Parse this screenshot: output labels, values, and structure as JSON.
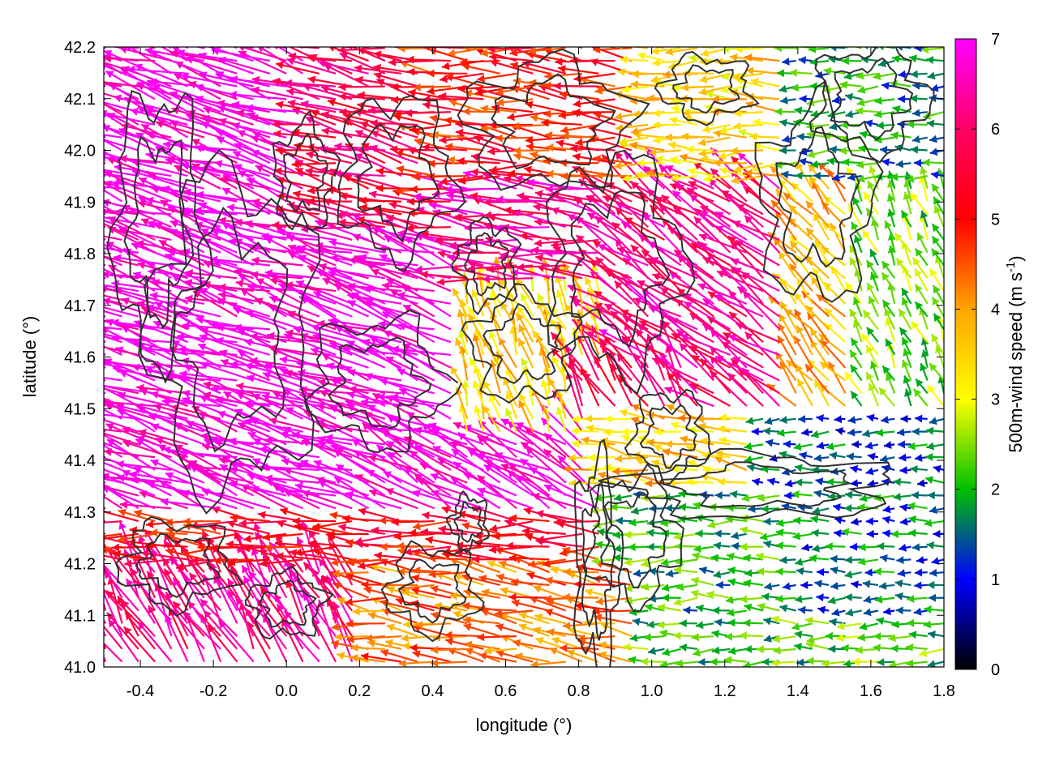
{
  "chart_data": {
    "type": "vector-field",
    "xlabel": "longitude (°)",
    "ylabel": "latitude (°)",
    "colorbar_label_main": "500m-wind speed (m s",
    "colorbar_label_sup": "-1",
    "colorbar_label_end": ")",
    "xlim": [
      -0.5,
      1.8
    ],
    "ylim": [
      41.0,
      42.2
    ],
    "xticks": [
      "-0.4",
      "-0.2",
      "0.0",
      "0.2",
      "0.4",
      "0.6",
      "0.8",
      "1.0",
      "1.2",
      "1.4",
      "1.6",
      "1.8"
    ],
    "yticks": [
      "41.0",
      "41.1",
      "41.2",
      "41.3",
      "41.4",
      "41.5",
      "41.6",
      "41.7",
      "41.8",
      "41.9",
      "42.0",
      "42.1",
      "42.2"
    ],
    "colorbar_range": [
      0,
      7
    ],
    "colorbar_ticks": [
      "0",
      "1",
      "2",
      "3",
      "4",
      "5",
      "6",
      "7"
    ],
    "colormap": [
      "#000000",
      "#0000ff",
      "#00c000",
      "#ffff00",
      "#ffa500",
      "#ff0000",
      "#ff00ff"
    ],
    "contour_color": "#303030",
    "regions": [
      {
        "lon": [
          -0.5,
          0.45
        ],
        "lat": [
          41.3,
          42.2
        ],
        "speed": 7.0,
        "dir_deg": 162
      },
      {
        "lon": [
          0.05,
          0.5
        ],
        "lat": [
          41.85,
          42.2
        ],
        "speed": 5.8,
        "dir_deg": 168
      },
      {
        "lon": [
          0.4,
          0.95
        ],
        "lat": [
          41.9,
          42.2
        ],
        "speed": 5.0,
        "dir_deg": 175
      },
      {
        "lon": [
          0.95,
          1.4
        ],
        "lat": [
          41.95,
          42.2
        ],
        "speed": 3.5,
        "dir_deg": 180
      },
      {
        "lon": [
          1.35,
          1.8
        ],
        "lat": [
          41.95,
          42.2
        ],
        "speed": 1.8,
        "dir_deg": 180
      },
      {
        "lon": [
          0.45,
          1.05
        ],
        "lat": [
          41.75,
          41.95
        ],
        "speed": 6.3,
        "dir_deg": 172
      },
      {
        "lon": [
          0.45,
          0.9
        ],
        "lat": [
          41.45,
          41.75
        ],
        "speed": 3.5,
        "dir_deg": 110
      },
      {
        "lon": [
          0.9,
          1.45
        ],
        "lat": [
          41.5,
          41.95
        ],
        "speed": 6.2,
        "dir_deg": 145
      },
      {
        "lon": [
          1.35,
          1.6
        ],
        "lat": [
          41.5,
          41.95
        ],
        "speed": 3.8,
        "dir_deg": 130
      },
      {
        "lon": [
          1.55,
          1.8
        ],
        "lat": [
          41.5,
          41.95
        ],
        "speed": 2.4,
        "dir_deg": 115
      },
      {
        "lon": [
          0.3,
          0.9
        ],
        "lat": [
          41.3,
          41.45
        ],
        "speed": 6.8,
        "dir_deg": 150
      },
      {
        "lon": [
          0.8,
          1.1
        ],
        "lat": [
          41.45,
          41.6
        ],
        "speed": 5.8,
        "dir_deg": 120
      },
      {
        "lon": [
          0.85,
          1.35
        ],
        "lat": [
          41.35,
          41.5
        ],
        "speed": 3.6,
        "dir_deg": 170
      },
      {
        "lon": [
          1.3,
          1.8
        ],
        "lat": [
          41.35,
          41.5
        ],
        "speed": 1.4,
        "dir_deg": 180
      },
      {
        "lon": [
          0.9,
          1.35
        ],
        "lat": [
          41.1,
          41.35
        ],
        "speed": 2.0,
        "dir_deg": 180
      },
      {
        "lon": [
          1.35,
          1.8
        ],
        "lat": [
          41.1,
          41.35
        ],
        "speed": 1.5,
        "dir_deg": 180
      },
      {
        "lon": [
          0.95,
          1.8
        ],
        "lat": [
          41.0,
          41.1
        ],
        "speed": 2.2,
        "dir_deg": 180
      },
      {
        "lon": [
          -0.5,
          0.9
        ],
        "lat": [
          41.2,
          41.3
        ],
        "speed": 5.2,
        "dir_deg": 177
      },
      {
        "lon": [
          0.2,
          0.95
        ],
        "lat": [
          41.0,
          41.2
        ],
        "speed": 4.3,
        "dir_deg": 172
      },
      {
        "lon": [
          -0.5,
          0.2
        ],
        "lat": [
          41.0,
          41.2
        ],
        "speed": 6.2,
        "dir_deg": 120
      }
    ]
  }
}
